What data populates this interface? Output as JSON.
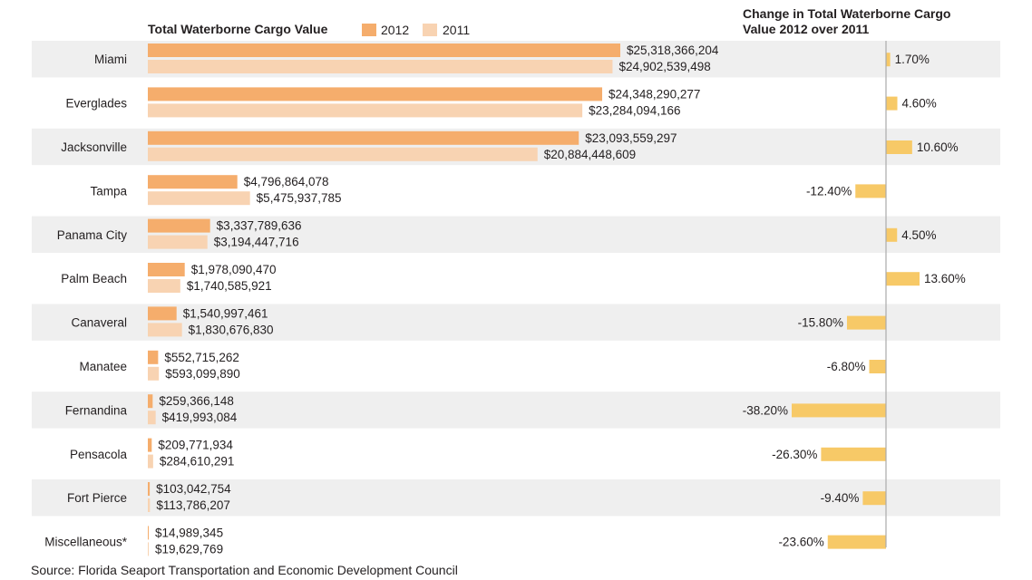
{
  "chart_data": {
    "type": "bar",
    "title": "Total Waterborne Cargo Value",
    "right_title": [
      "Change in Total Waterborne Cargo",
      "Value 2012 over 2011"
    ],
    "source": "Source: Florida Seaport Transportation and Economic Development Council",
    "colors": {
      "2012": "#f5ad6c",
      "2011": "#f8d3b2",
      "change": "#f7c967",
      "band": "#efefef",
      "axis": "#aaaaaa"
    },
    "categories": [
      "Miami",
      "Everglades",
      "Jacksonville",
      "Tampa",
      "Panama City",
      "Palm Beach",
      "Canaveral",
      "Manatee",
      "Fernandina",
      "Pensacola",
      "Fort Pierce",
      "Miscellaneous*"
    ],
    "series": [
      {
        "name": "2012",
        "values": [
          25318366204,
          24348290277,
          23093559297,
          4796864078,
          3337789636,
          1978090470,
          1540997461,
          552715262,
          259366148,
          209771934,
          103042754,
          14989345
        ],
        "labels": [
          "$25,318,366,204",
          "$24,348,290,277",
          "$23,093,559,297",
          "$4,796,864,078",
          "$3,337,789,636",
          "$1,978,090,470",
          "$1,540,997,461",
          "$552,715,262",
          "$259,366,148",
          "$209,771,934",
          "$103,042,754",
          "$14,989,345"
        ]
      },
      {
        "name": "2011",
        "values": [
          24902539498,
          23284094166,
          20884448609,
          5475937785,
          3194447716,
          1740585921,
          1830676830,
          593099890,
          419993084,
          284610291,
          113786207,
          19629769
        ],
        "labels": [
          "$24,902,539,498",
          "$23,284,094,166",
          "$20,884,448,609",
          "$5,475,937,785",
          "$3,194,447,716",
          "$1,740,585,921",
          "$1,830,676,830",
          "$593,099,890",
          "$419,993,084",
          "$284,610,291",
          "$113,786,207",
          "$19,629,769"
        ]
      }
    ],
    "change": {
      "values": [
        1.7,
        4.6,
        10.6,
        -12.4,
        4.5,
        13.6,
        -15.8,
        -6.8,
        -38.2,
        -26.3,
        -9.4,
        -23.6
      ],
      "labels": [
        "1.70%",
        "4.60%",
        "10.60%",
        "-12.40%",
        "4.50%",
        "13.60%",
        "-15.80%",
        "-6.80%",
        "-38.20%",
        "-26.30%",
        "-9.40%",
        "-23.60%"
      ]
    },
    "xlim": [
      0,
      25318366204
    ],
    "change_lim": [
      -38.2,
      13.6
    ],
    "grid": false,
    "legend": "top"
  }
}
